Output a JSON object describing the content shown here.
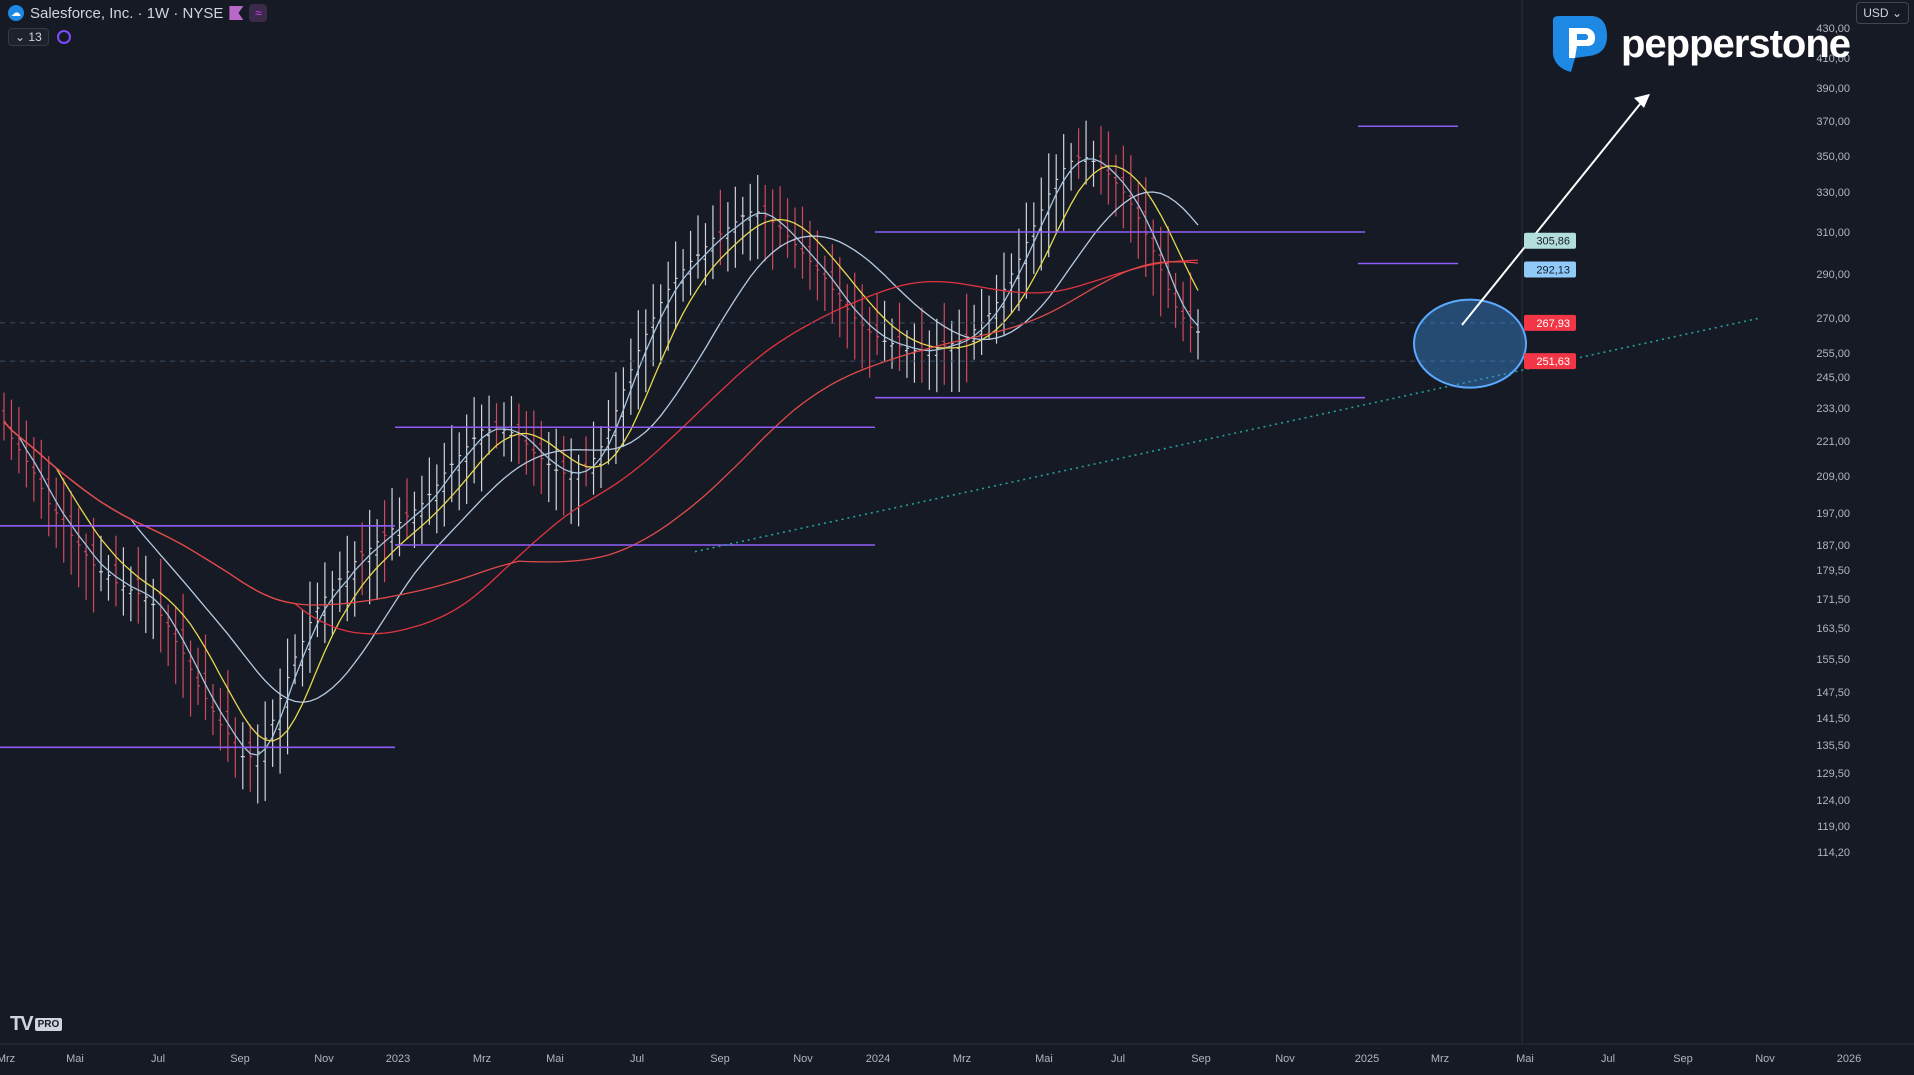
{
  "header": {
    "symbol_title": "Salesforce, Inc. · 1W · NYSE",
    "indicator_count": "13",
    "currency": "USD"
  },
  "branding": {
    "name": "pepperstone",
    "platform_mark": "TV",
    "platform_badge": "PRO"
  },
  "colors": {
    "background": "#161a25",
    "bull_candle": "#d1d4dc",
    "bear_candle": "#d1495b",
    "level_line": "#8f5cf7",
    "ema_fast": "#a7c4dc",
    "ema_mid": "#e8d84f",
    "ema_slow": "#b8cbe0",
    "sma_long": "#e0343f",
    "sma_longer": "#e04a4a",
    "trendline": "#23a19a",
    "highlight": "#3d8fe0",
    "arrow": "#ffffff"
  },
  "chart_data": {
    "type": "candlestick",
    "timeframe": "1W",
    "ylim": [
      114.2,
      437
    ],
    "x_ticks": [
      "Mrz",
      "Mai",
      "Jul",
      "Sep",
      "Nov",
      "2023",
      "Mrz",
      "Mai",
      "Jul",
      "Sep",
      "Nov",
      "2024",
      "Mrz",
      "Mai",
      "Jul",
      "Sep",
      "Nov",
      "2025",
      "Mrz",
      "Mai",
      "Jul",
      "Sep",
      "Nov",
      "2026"
    ],
    "y_ticks": [
      "430,00",
      "410,00",
      "390,00",
      "370,00",
      "350,00",
      "330,00",
      "310,00",
      "290,00",
      "270,00",
      "255,00",
      "245,00",
      "233,00",
      "221,00",
      "209,00",
      "197,00",
      "187,00",
      "179,50",
      "171,50",
      "163,50",
      "155,50",
      "147,50",
      "141,50",
      "135,50",
      "129,50",
      "124,00",
      "119,00",
      "114,20"
    ],
    "price_labels": [
      {
        "text": "305,86",
        "value": 305.86,
        "bg": "#b2dfdb",
        "fg": "#161a25"
      },
      {
        "text": "292,13",
        "value": 292.13,
        "bg": "#90caf9",
        "fg": "#161a25"
      },
      {
        "text": "267,93",
        "value": 267.93,
        "bg": "#f23645",
        "fg": "#ffffff"
      },
      {
        "text": "251,63",
        "value": 251.63,
        "bg": "#f23645",
        "fg": "#ffffff"
      }
    ],
    "closes": [
      228,
      222,
      218,
      214,
      210,
      205,
      200,
      197,
      193,
      190,
      187,
      184,
      181,
      179,
      178,
      176,
      175,
      174,
      173,
      172,
      170,
      167,
      164,
      160,
      157,
      153,
      149,
      146,
      143,
      140,
      138,
      135,
      133,
      133,
      134,
      137,
      141,
      146,
      151,
      156,
      160,
      165,
      169,
      172,
      174,
      177,
      179,
      182,
      184,
      186,
      188,
      190,
      192,
      194,
      196,
      198,
      200,
      203,
      206,
      210,
      213,
      216,
      219,
      222,
      225,
      225,
      226,
      225,
      224,
      223,
      220,
      217,
      215,
      213,
      211,
      210,
      210,
      210,
      212,
      215,
      219,
      225,
      232,
      240,
      248,
      256,
      263,
      270,
      277,
      283,
      288,
      292,
      296,
      299,
      303,
      307,
      309,
      312,
      315,
      318,
      320,
      320,
      318,
      315,
      312,
      308,
      304,
      300,
      296,
      292,
      288,
      283,
      278,
      274,
      270,
      267,
      264,
      262,
      260,
      259,
      258,
      257,
      256,
      256,
      256,
      257,
      258,
      259,
      260,
      262,
      265,
      268,
      272,
      277,
      283,
      290,
      297,
      305,
      313,
      321,
      329,
      337,
      343,
      347,
      349,
      349,
      347,
      344,
      340,
      335,
      330,
      324,
      317,
      309,
      301,
      292,
      283,
      275,
      270,
      266,
      264
    ]
  }
}
